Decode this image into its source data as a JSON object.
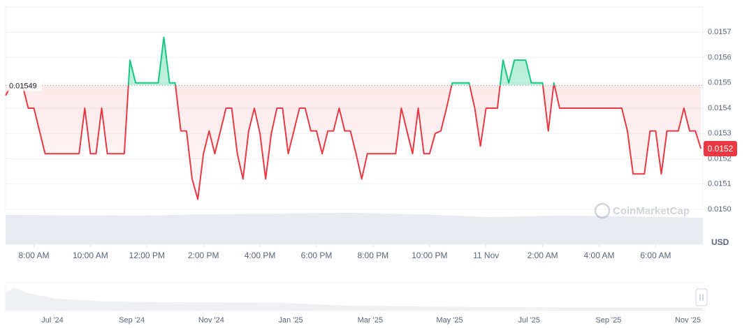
{
  "chart_data": {
    "type": "line",
    "reference_value": 0.01549,
    "price_label": "0.0152",
    "currency": "USD",
    "watermark": "CoinMarketCap",
    "up_color": "#16c784",
    "down_color": "#ea3943",
    "xlim": [
      7.0,
      31.67
    ],
    "xticks": [
      {
        "value": 8,
        "label": "8:00 AM"
      },
      {
        "value": 10,
        "label": "10:00 AM"
      },
      {
        "value": 12,
        "label": "12:00 PM"
      },
      {
        "value": 14,
        "label": "2:00 PM"
      },
      {
        "value": 16,
        "label": "4:00 PM"
      },
      {
        "value": 18,
        "label": "6:00 PM"
      },
      {
        "value": 20,
        "label": "8:00 PM"
      },
      {
        "value": 22,
        "label": "10:00 PM"
      },
      {
        "value": 24,
        "label": "11 Nov"
      },
      {
        "value": 26,
        "label": "2:00 AM"
      },
      {
        "value": 28,
        "label": "4:00 AM"
      },
      {
        "value": 30,
        "label": "6:00 AM"
      }
    ],
    "ylim": [
      0.015,
      0.0158
    ],
    "yticks": [
      {
        "value": 0.015,
        "label": "0.0150"
      },
      0.0151,
      0.0152,
      0.0153,
      0.0154,
      0.0155,
      0.0156,
      0.0157
    ],
    "grid": true,
    "x": [
      7.0,
      7.2,
      7.4,
      7.6,
      7.8,
      8.0,
      8.2,
      8.4,
      8.6,
      8.8,
      9.0,
      9.2,
      9.4,
      9.6,
      9.8,
      10.0,
      10.2,
      10.4,
      10.6,
      10.8,
      11.0,
      11.2,
      11.4,
      11.6,
      11.8,
      12.0,
      12.2,
      12.4,
      12.6,
      12.8,
      13.0,
      13.2,
      13.4,
      13.6,
      13.8,
      14.0,
      14.2,
      14.4,
      14.6,
      14.8,
      15.0,
      15.2,
      15.4,
      15.6,
      15.8,
      16.0,
      16.2,
      16.4,
      16.6,
      16.8,
      17.0,
      17.2,
      17.4,
      17.6,
      17.8,
      18.0,
      18.2,
      18.4,
      18.6,
      18.8,
      19.0,
      19.2,
      19.4,
      19.6,
      19.8,
      20.0,
      20.2,
      20.4,
      20.6,
      20.8,
      21.0,
      21.2,
      21.4,
      21.6,
      21.8,
      22.0,
      22.2,
      22.4,
      22.6,
      22.8,
      23.0,
      23.2,
      23.4,
      23.6,
      23.8,
      24.0,
      24.2,
      24.4,
      24.6,
      24.8,
      25.0,
      25.2,
      25.4,
      25.6,
      25.8,
      26.0,
      26.2,
      26.4,
      26.6,
      26.8,
      27.0,
      27.2,
      27.4,
      27.6,
      27.8,
      28.0,
      28.2,
      28.4,
      28.6,
      28.8,
      29.0,
      29.2,
      29.4,
      29.6,
      29.8,
      30.0,
      30.2,
      30.4,
      30.6,
      30.8,
      31.0,
      31.2,
      31.4,
      31.6
    ],
    "values": [
      0.01545,
      0.01549,
      0.01549,
      0.01549,
      0.0154,
      0.0154,
      0.01531,
      0.01522,
      0.01522,
      0.01522,
      0.01522,
      0.01522,
      0.01522,
      0.01522,
      0.0154,
      0.01522,
      0.01522,
      0.0154,
      0.01522,
      0.01522,
      0.01522,
      0.01522,
      0.01559,
      0.0155,
      0.0155,
      0.0155,
      0.0155,
      0.0155,
      0.01568,
      0.0155,
      0.0155,
      0.01531,
      0.01531,
      0.01512,
      0.01504,
      0.01522,
      0.01531,
      0.01522,
      0.01531,
      0.0154,
      0.0154,
      0.01522,
      0.01512,
      0.01531,
      0.0154,
      0.0153,
      0.01512,
      0.0153,
      0.0154,
      0.0154,
      0.01522,
      0.01531,
      0.0154,
      0.0154,
      0.01531,
      0.01531,
      0.01522,
      0.01531,
      0.01531,
      0.0154,
      0.01531,
      0.01531,
      0.01522,
      0.01512,
      0.01522,
      0.01522,
      0.01522,
      0.01522,
      0.01522,
      0.01522,
      0.0154,
      0.01531,
      0.01522,
      0.0154,
      0.01522,
      0.01522,
      0.0153,
      0.01531,
      0.0154,
      0.0155,
      0.0155,
      0.0155,
      0.0155,
      0.0154,
      0.01525,
      0.0154,
      0.0154,
      0.0154,
      0.01559,
      0.0155,
      0.01559,
      0.01559,
      0.01559,
      0.0155,
      0.0155,
      0.0155,
      0.01531,
      0.0155,
      0.0154,
      0.0154,
      0.0154,
      0.0154,
      0.0154,
      0.0154,
      0.0154,
      0.0154,
      0.0154,
      0.0154,
      0.0154,
      0.0154,
      0.01531,
      0.01514,
      0.01514,
      0.01514,
      0.01531,
      0.01531,
      0.01514,
      0.01531,
      0.01531,
      0.01531,
      0.0154,
      0.01531,
      0.01531,
      0.01524
    ],
    "navigator_labels": [
      "Jul '24",
      "Sep '24",
      "Nov '24",
      "Jan '25",
      "Mar '25",
      "May '25",
      "Jul '25",
      "Sep '25",
      "Nov '25"
    ]
  }
}
